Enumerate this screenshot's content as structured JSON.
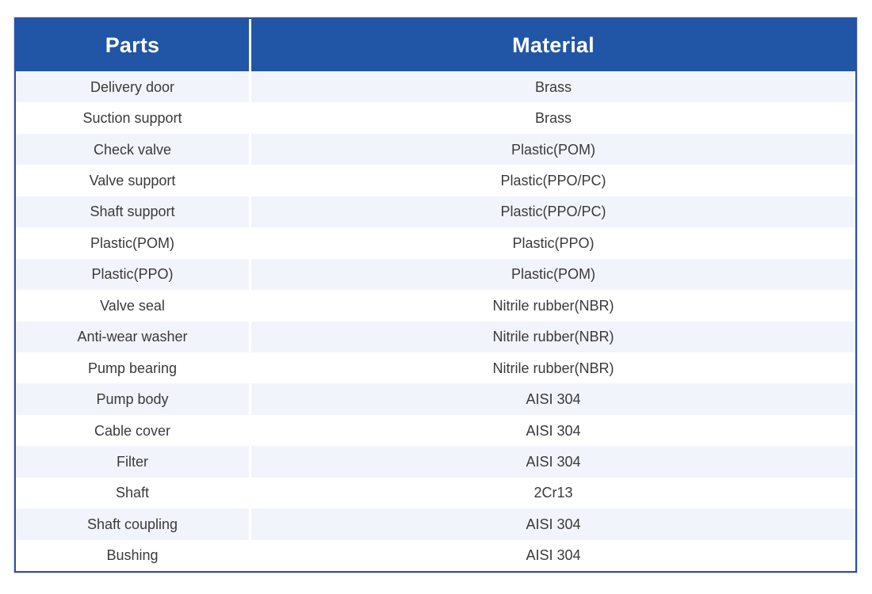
{
  "colors": {
    "header_bg": "#2155a5",
    "stripe_bg": "#f1f4fa",
    "row_bg": "#ffffff",
    "border": "#2e4fa3",
    "header_text": "#ffffff",
    "body_text": "#3a3a3a",
    "page_bg": "#ffffff"
  },
  "table": {
    "columns": [
      {
        "label": "Parts"
      },
      {
        "label": "Material"
      }
    ],
    "rows": [
      {
        "part": "Delivery door",
        "material": "Brass"
      },
      {
        "part": "Suction support",
        "material": "Brass"
      },
      {
        "part": "Check valve",
        "material": "Plastic(POM)"
      },
      {
        "part": "Valve support",
        "material": "Plastic(PPO/PC)"
      },
      {
        "part": "Shaft support",
        "material": "Plastic(PPO/PC)"
      },
      {
        "part": "Plastic(POM)",
        "material": "Plastic(PPO)"
      },
      {
        "part": "Plastic(PPO)",
        "material": "Plastic(POM)"
      },
      {
        "part": "Valve seal",
        "material": "Nitrile rubber(NBR)"
      },
      {
        "part": "Anti-wear washer",
        "material": "Nitrile rubber(NBR)"
      },
      {
        "part": "Pump bearing",
        "material": "Nitrile rubber(NBR)"
      },
      {
        "part": "Pump body",
        "material": "AISI 304"
      },
      {
        "part": "Cable cover",
        "material": "AISI 304"
      },
      {
        "part": "Filter",
        "material": "AISI 304"
      },
      {
        "part": "Shaft",
        "material": "2Cr13"
      },
      {
        "part": "Shaft coupling",
        "material": "AISI 304"
      },
      {
        "part": "Bushing",
        "material": "AISI 304"
      }
    ]
  }
}
